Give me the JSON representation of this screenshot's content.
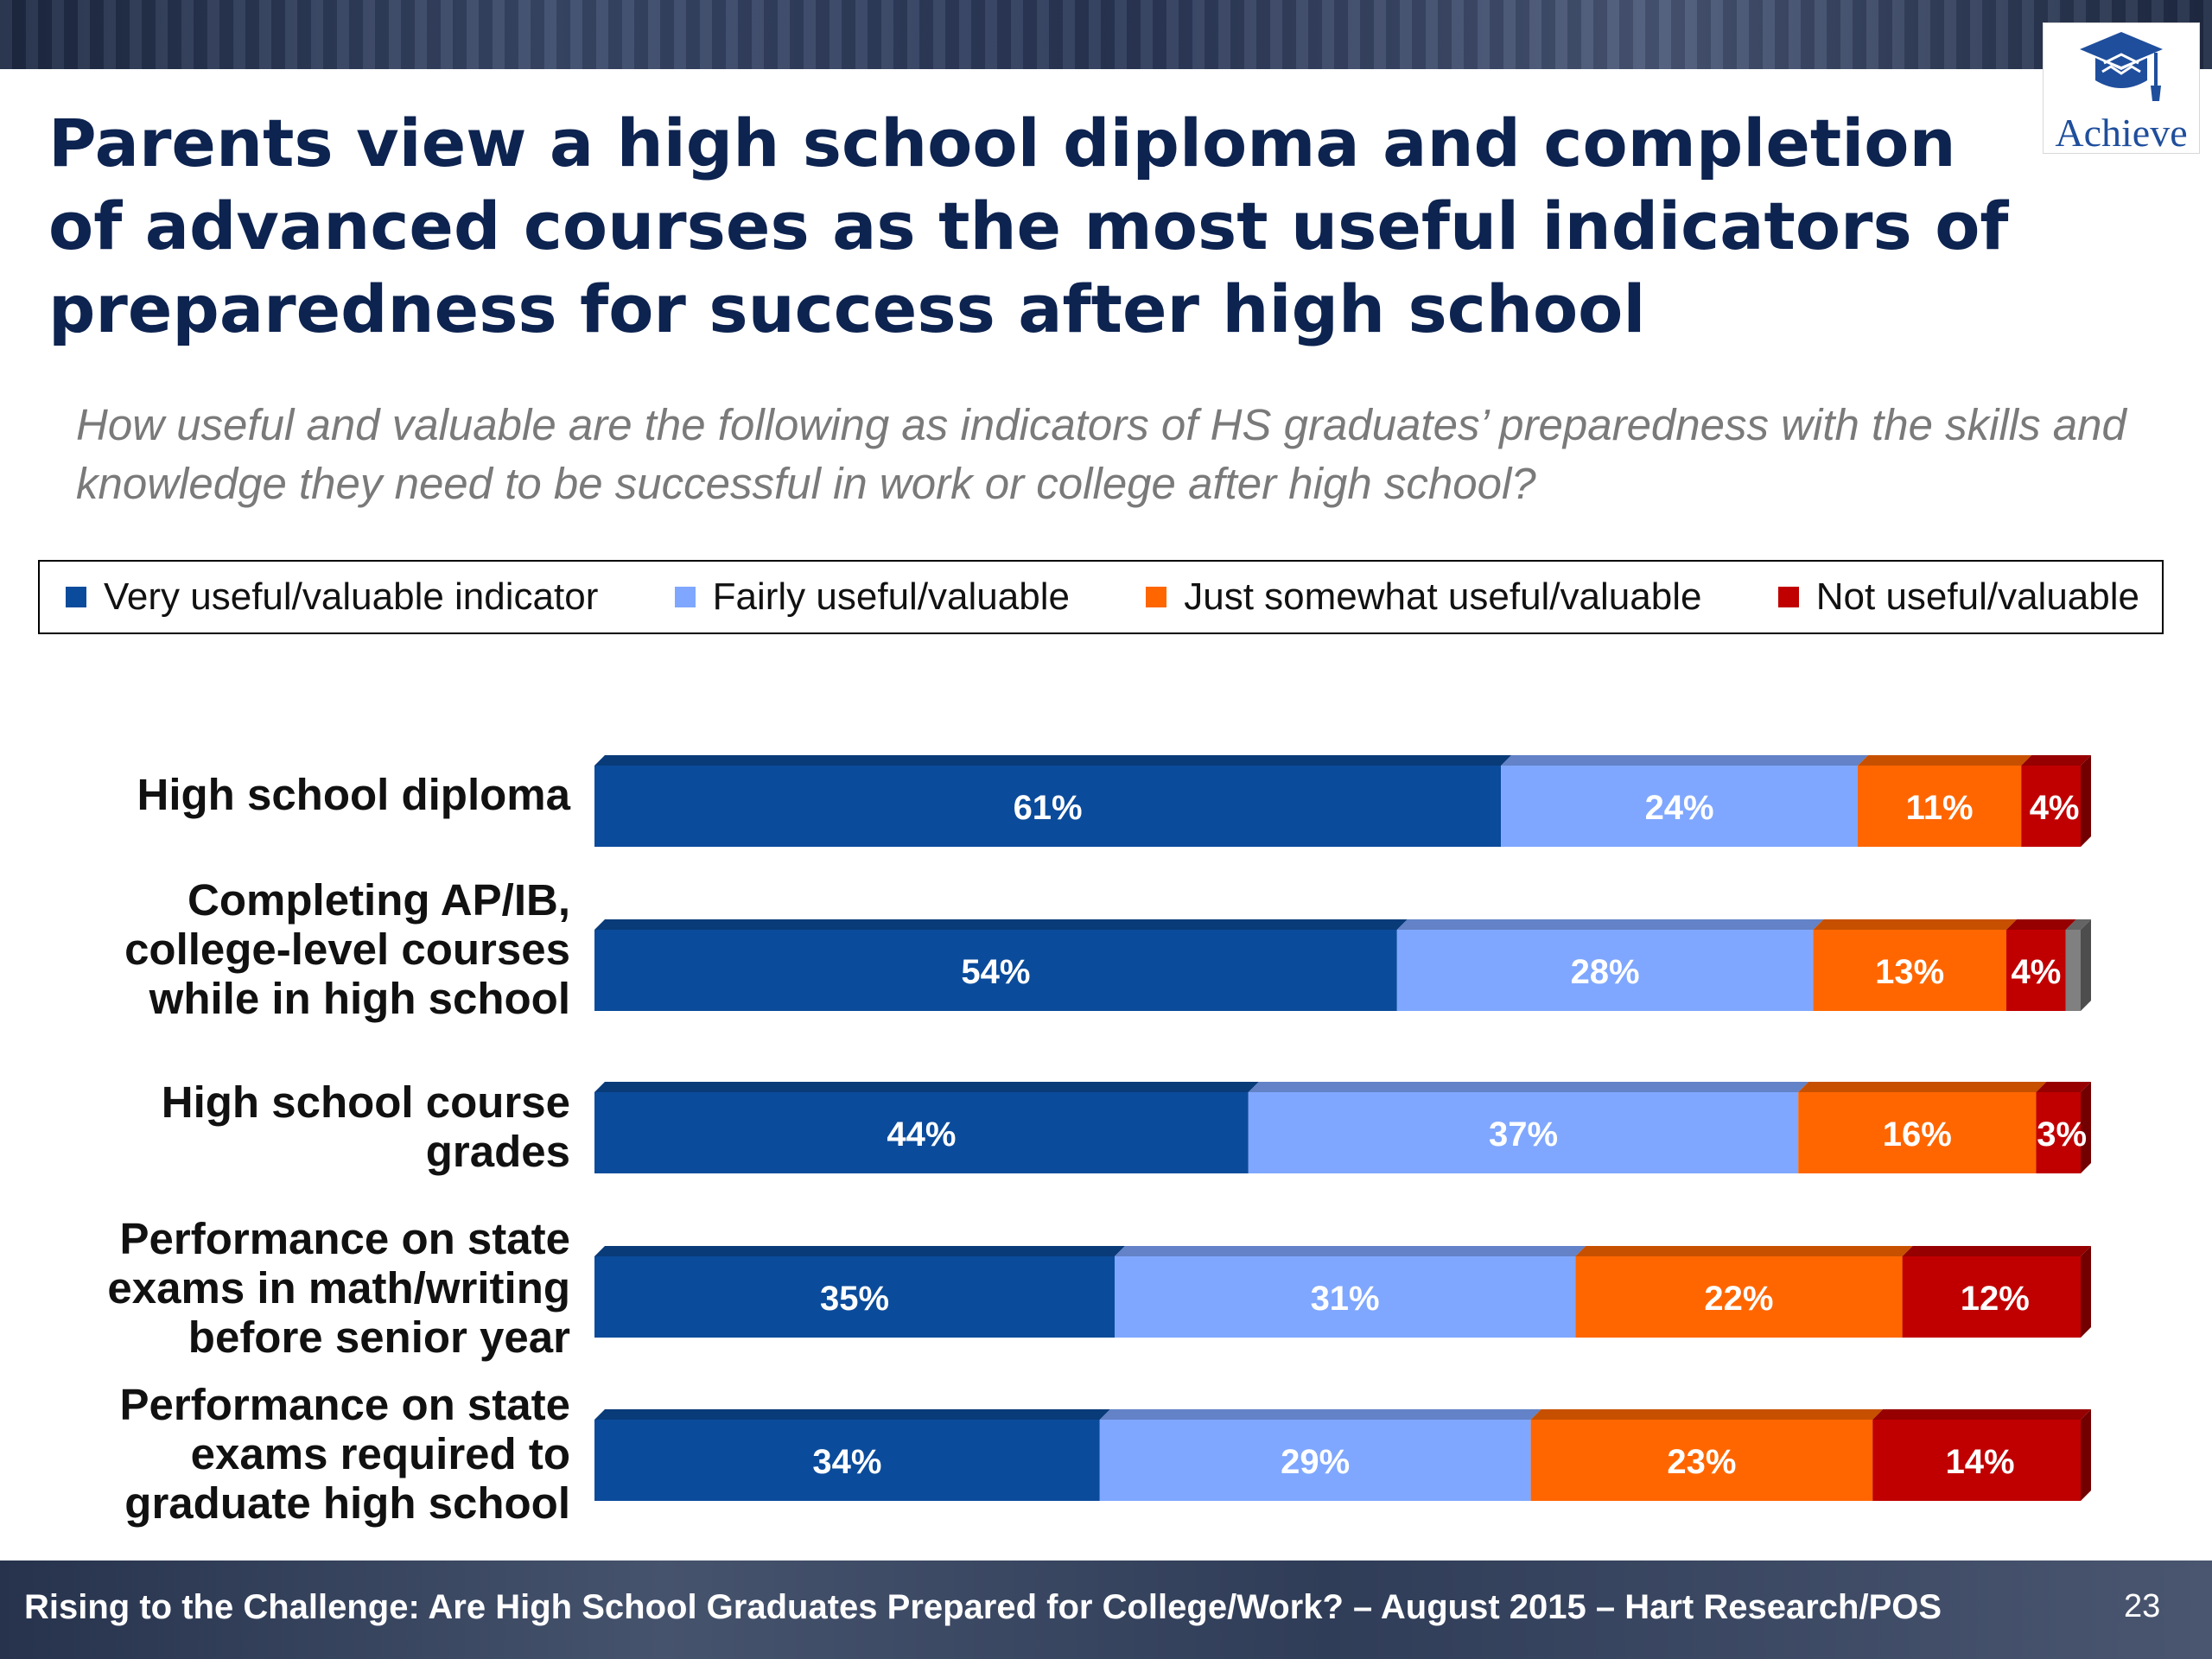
{
  "slide": {
    "title": "Parents view a high school diploma and completion of advanced courses as the most useful indicators of preparedness for success after high school",
    "question": "How useful and valuable are the following as indicators of HS graduates’  preparedness with the skills and knowledge they need to be successful in work or college after high school?",
    "logo_text": "Achieve",
    "footer": "Rising to the Challenge:  Are High School Graduates Prepared for College/Work? – August 2015 – Hart Research/POS",
    "page_number": "23"
  },
  "chart_data": {
    "type": "bar",
    "orientation": "horizontal",
    "stacked": true,
    "legend_position": "top",
    "grid": false,
    "xlim": [
      0,
      100
    ],
    "categories": [
      "High school diploma",
      "Completing AP/IB, college-level courses while in high school",
      "High school course grades",
      "Performance on state exams in math/writing before senior year",
      "Performance on state exams required to graduate high school"
    ],
    "series": [
      {
        "name": "Very useful/valuable indicator",
        "color": "#0b4b9b",
        "values": [
          61,
          54,
          44,
          35,
          34
        ],
        "labels": [
          "61%",
          "54%",
          "44%",
          "35%",
          "34%"
        ]
      },
      {
        "name": "Fairly useful/valuable",
        "color": "#7fa7ff",
        "values": [
          24,
          28,
          37,
          31,
          29
        ],
        "labels": [
          "24%",
          "28%",
          "37%",
          "31%",
          "29%"
        ]
      },
      {
        "name": "Just somewhat useful/valuable",
        "color": "#ff6600",
        "values": [
          11,
          13,
          16,
          22,
          23
        ],
        "labels": [
          "11%",
          "13%",
          "16%",
          "22%",
          "23%"
        ]
      },
      {
        "name": "Not useful/valuable",
        "color": "#c00000",
        "values": [
          4,
          4,
          3,
          12,
          14
        ],
        "labels": [
          "4%",
          "4%",
          "3%",
          "12%",
          "14%"
        ]
      }
    ],
    "unlabeled_remainder": {
      "color": "#808080",
      "values": [
        0,
        1,
        0,
        0,
        0
      ]
    }
  }
}
